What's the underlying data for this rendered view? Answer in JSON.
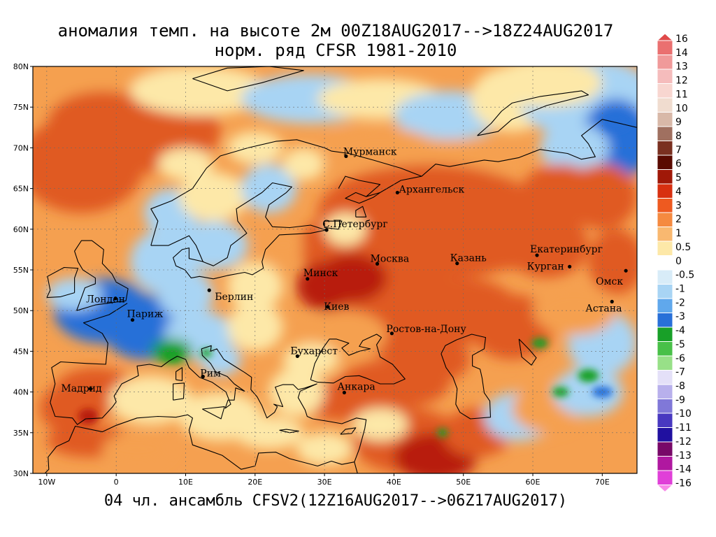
{
  "title_line1": "аномалия темп. на высоте 2м 00Z18AUG2017-->18Z24AUG2017",
  "title_line2": "норм. ряд CFSR 1981-2010",
  "footer": "04 чл. ансамбль CFSV2(12Z16AUG2017-->06Z17AUG2017)",
  "lat_labels": [
    "80N",
    "75N",
    "70N",
    "65N",
    "60N",
    "55N",
    "50N",
    "45N",
    "40N",
    "35N",
    "30N"
  ],
  "lon_labels": [
    "10W",
    "0",
    "10E",
    "20E",
    "30E",
    "40E",
    "50E",
    "60E",
    "70E"
  ],
  "map_extent": {
    "lon": [
      -12,
      75
    ],
    "lat": [
      30,
      80
    ]
  },
  "cities": [
    {
      "name": "Мурманск",
      "lon": 33.1,
      "lat": 68.97
    },
    {
      "name": "Архангельск",
      "lon": 40.5,
      "lat": 64.5
    },
    {
      "name": "С.Петербург",
      "lon": 30.3,
      "lat": 59.9
    },
    {
      "name": "Москва",
      "lon": 37.6,
      "lat": 55.75
    },
    {
      "name": "Казань",
      "lon": 49.1,
      "lat": 55.8
    },
    {
      "name": "Екатеринбург",
      "lon": 60.6,
      "lat": 56.8
    },
    {
      "name": "Курган",
      "lon": 65.3,
      "lat": 55.4
    },
    {
      "name": "Омск",
      "lon": 73.4,
      "lat": 54.9
    },
    {
      "name": "Астана",
      "lon": 71.4,
      "lat": 51.1
    },
    {
      "name": "Минск",
      "lon": 27.55,
      "lat": 53.9
    },
    {
      "name": "Киев",
      "lon": 30.5,
      "lat": 50.45
    },
    {
      "name": "Берлин",
      "lon": 13.4,
      "lat": 52.5
    },
    {
      "name": "Лондон",
      "lon": -0.1,
      "lat": 51.5
    },
    {
      "name": "Париж",
      "lon": 2.35,
      "lat": 48.85
    },
    {
      "name": "Ростов-на-Дону",
      "lon": 39.7,
      "lat": 47.2
    },
    {
      "name": "Бухарест",
      "lon": 26.1,
      "lat": 44.4
    },
    {
      "name": "Рим",
      "lon": 12.5,
      "lat": 41.9
    },
    {
      "name": "Мадрид",
      "lon": -3.7,
      "lat": 40.4
    },
    {
      "name": "Анкара",
      "lon": 32.85,
      "lat": 39.93
    }
  ],
  "legend": {
    "labels": [
      "16",
      "14",
      "13",
      "12",
      "11",
      "10",
      "9",
      "8",
      "7",
      "6",
      "5",
      "4",
      "3",
      "2",
      "1",
      "0.5",
      "0",
      "-0.5",
      "-1",
      "-2",
      "-3",
      "-4",
      "-5",
      "-6",
      "-7",
      "-8",
      "-9",
      "-10",
      "-11",
      "-12",
      "-13",
      "-14",
      "-16"
    ],
    "colors": [
      "#e04a4a",
      "#ea7070",
      "#f09a9a",
      "#f5bcbc",
      "#f8d6d0",
      "#f0dccf",
      "#d8b8a8",
      "#a07060",
      "#7a3020",
      "#5a0a00",
      "#a01808",
      "#d83010",
      "#ee5a20",
      "#f58a40",
      "#f9b870",
      "#fde8a8",
      "#ffffff",
      "#d8ecf8",
      "#a8d4f4",
      "#60a8ec",
      "#2870d8",
      "#18a028",
      "#48c048",
      "#98e088",
      "#e4e0f8",
      "#b8b0ec",
      "#8078d8",
      "#4838c0",
      "#2010a0",
      "#780868",
      "#b018a0",
      "#e040d8",
      "#f888e8"
    ]
  },
  "colors": {
    "hot_core": "#b81e08",
    "hot": "#e05a22",
    "warm": "#f5a050",
    "neutral": "#fde8a8",
    "cool": "#a8d4f4",
    "cold": "#2870d8",
    "very_cold": "#18a028"
  }
}
